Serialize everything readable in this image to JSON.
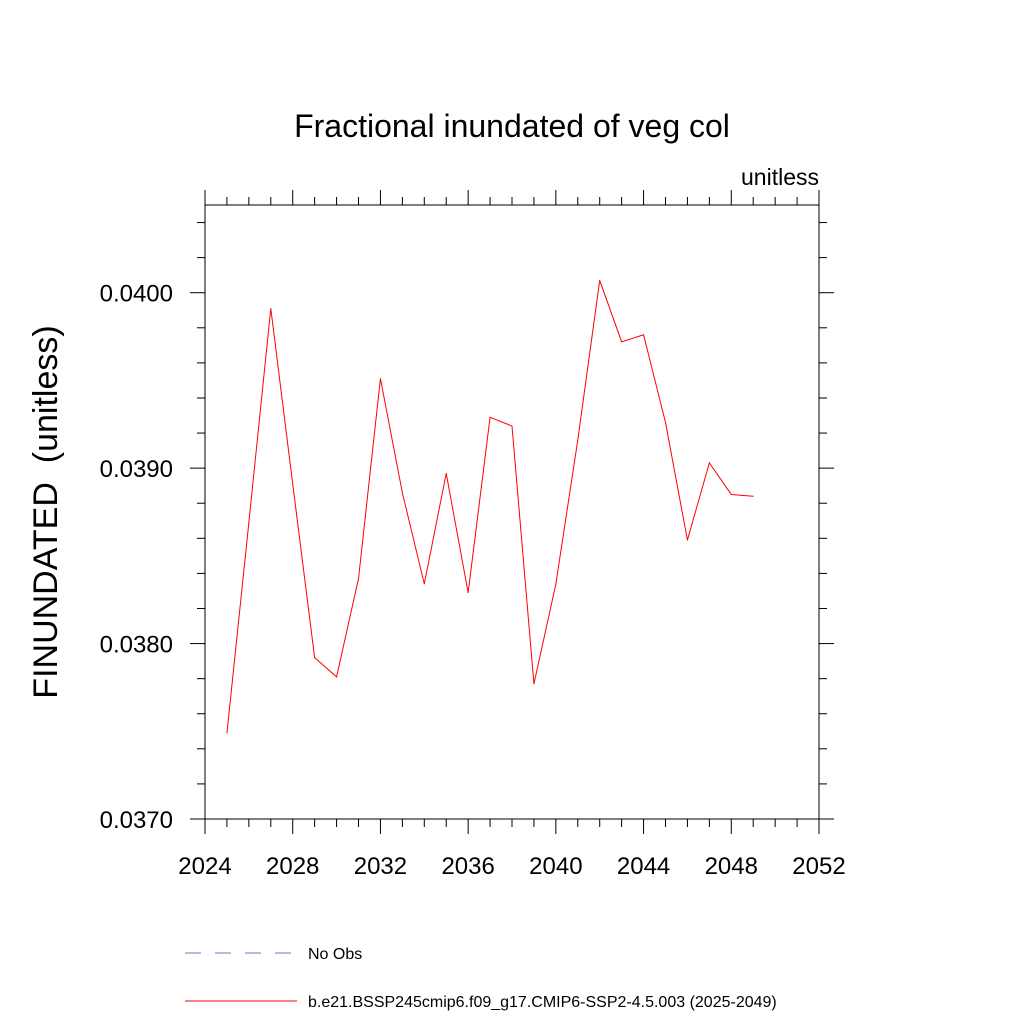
{
  "chart_data": {
    "type": "line",
    "title": "Fractional inundated of veg col",
    "units_label": "unitless",
    "ylabel": "FINUNDATED  (unitless)",
    "xlabel": "",
    "xlim": [
      2024,
      2052
    ],
    "ylim": [
      0.037,
      0.0405
    ],
    "x_ticks": [
      2024,
      2028,
      2032,
      2036,
      2040,
      2044,
      2048,
      2052
    ],
    "x_tick_labels": [
      "2024",
      "2028",
      "2032",
      "2036",
      "2040",
      "2044",
      "2048",
      "2052"
    ],
    "x_minor_step": 1,
    "y_ticks": [
      0.037,
      0.038,
      0.039,
      0.04
    ],
    "y_tick_labels": [
      "0.0370",
      "0.0380",
      "0.0390",
      "0.0400"
    ],
    "y_minor_step": 0.0002,
    "grid": false,
    "legend_position": "bottom",
    "series": [
      {
        "name": "No Obs",
        "color": "#7b6fc0",
        "dash": "dashed",
        "x": [],
        "y": []
      },
      {
        "name": "b.e21.BSSP245cmip6.f09_g17.CMIP6-SSP2-4.5.003 (2025-2049)",
        "color": "#ff0000",
        "dash": "solid",
        "x": [
          2025,
          2026,
          2027,
          2028,
          2029,
          2030,
          2031,
          2032,
          2033,
          2034,
          2035,
          2036,
          2037,
          2038,
          2039,
          2040,
          2041,
          2042,
          2043,
          2044,
          2045,
          2046,
          2047,
          2048,
          2049
        ],
        "y": [
          0.03749,
          0.03869,
          0.03991,
          0.03891,
          0.03792,
          0.03781,
          0.03837,
          0.03951,
          0.03886,
          0.03834,
          0.03897,
          0.03829,
          0.03929,
          0.03924,
          0.03777,
          0.03834,
          0.03916,
          0.04007,
          0.03972,
          0.03976,
          0.03926,
          0.03859,
          0.03903,
          0.03885,
          0.03884
        ]
      }
    ]
  }
}
